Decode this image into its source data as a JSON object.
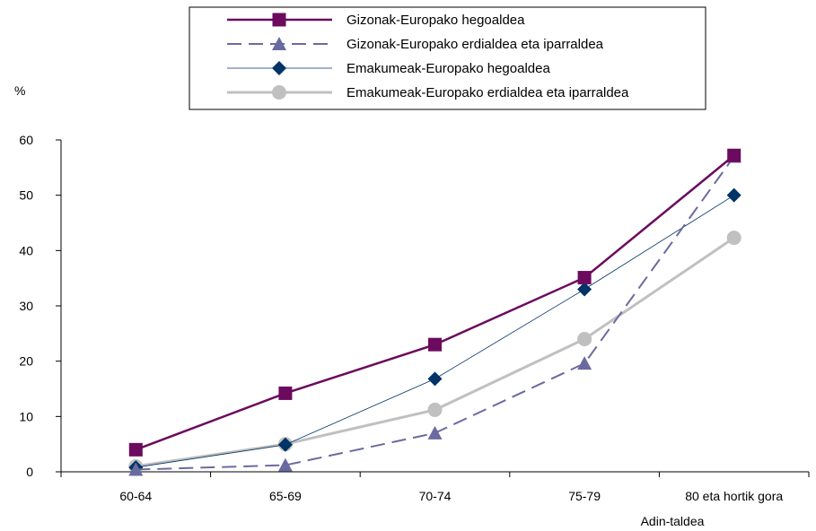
{
  "chart_data": {
    "type": "line",
    "categories": [
      "60-64",
      "65-69",
      "70-74",
      "75-79",
      "80 eta hortik gora"
    ],
    "xlabel": "Adin-taldea",
    "ylabel": "%",
    "ylim": [
      0,
      60
    ],
    "yticks": [
      0,
      10,
      20,
      30,
      40,
      50,
      60
    ],
    "grid": false,
    "legend_position": "top",
    "series": [
      {
        "name": "Gizonak-Europako hegoaldea",
        "values": [
          4,
          14.2,
          23,
          35.1,
          57.2
        ],
        "color": "#6b0a5e",
        "marker": "square",
        "line": "solid"
      },
      {
        "name": "Gizonak-Europako erdialdea eta iparraldea",
        "values": [
          0.4,
          1.2,
          7,
          19.6,
          57
        ],
        "color": "#6b6aa0",
        "marker": "triangle",
        "line": "dashed"
      },
      {
        "name": "Emakumeak-Europako hegoaldea",
        "values": [
          0.8,
          4.9,
          16.8,
          33,
          50
        ],
        "color": "#003366",
        "marker": "diamond",
        "line": "thin"
      },
      {
        "name": "Emakumeak-Europako erdialdea eta iparraldea",
        "values": [
          1,
          5,
          11.2,
          24,
          42.3
        ],
        "color": "#c0c0c0",
        "marker": "circle",
        "line": "solid"
      }
    ]
  }
}
